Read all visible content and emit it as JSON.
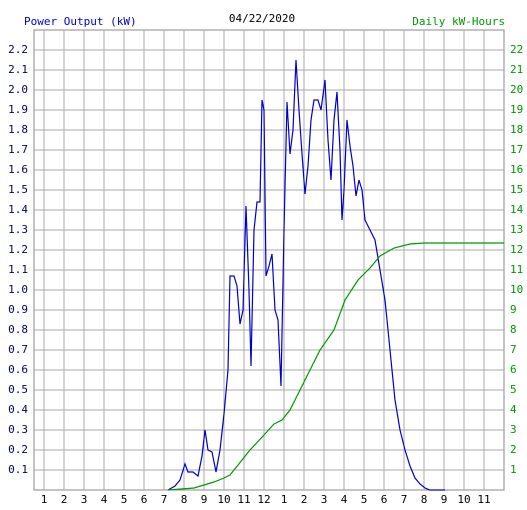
{
  "chart_data": {
    "type": "line",
    "title": "04/22/2020",
    "xlim": [
      0.5,
      24
    ],
    "ylim": [
      0,
      2.3
    ],
    "y2lim": [
      0,
      23
    ],
    "xticks": [
      1,
      2,
      3,
      4,
      5,
      6,
      7,
      8,
      9,
      10,
      11,
      12,
      {
        "value": 13,
        "label": "1"
      },
      {
        "value": 14,
        "label": "2"
      },
      {
        "value": 15,
        "label": "3"
      },
      {
        "value": 16,
        "label": "4"
      },
      {
        "value": 17,
        "label": "5"
      },
      {
        "value": 18,
        "label": "6"
      },
      {
        "value": 19,
        "label": "7"
      },
      {
        "value": 20,
        "label": "8"
      },
      {
        "value": 21,
        "label": "9"
      },
      {
        "value": 22,
        "label": "10"
      },
      {
        "value": 23,
        "label": "11"
      }
    ],
    "yticks": [
      0.1,
      0.2,
      0.3,
      0.4,
      0.5,
      0.6,
      0.7,
      0.8,
      0.9,
      {
        "value": 1,
        "label": "1.0"
      },
      1.1,
      1.2,
      1.3,
      1.4,
      1.5,
      1.6,
      1.7,
      1.8,
      1.9,
      {
        "value": 2,
        "label": "2.0"
      },
      2.1,
      2.2
    ],
    "y2ticks": [
      1,
      2,
      3,
      4,
      5,
      6,
      7,
      8,
      9,
      10,
      11,
      12,
      13,
      14,
      15,
      16,
      17,
      18,
      19,
      20,
      21,
      22
    ],
    "grid": true,
    "series": [
      {
        "name": "Power Output (kW)",
        "color": "#0000cc",
        "x": [
          7.2,
          7.55,
          7.8,
          8.05,
          8.2,
          8.45,
          8.7,
          8.9,
          9.05,
          9.2,
          9.4,
          9.6,
          9.8,
          10.0,
          10.2,
          10.3,
          10.5,
          10.65,
          10.8,
          10.95,
          11.1,
          11.25,
          11.35,
          11.5,
          11.65,
          11.8,
          11.9,
          12.0,
          12.1,
          12.25,
          12.4,
          12.55,
          12.7,
          12.85,
          13.0,
          13.15,
          13.3,
          13.45,
          13.6,
          13.75,
          13.9,
          14.05,
          14.2,
          14.35,
          14.5,
          14.7,
          14.85,
          15.05,
          15.2,
          15.35,
          15.5,
          15.65,
          15.8,
          15.9,
          16.0,
          16.15,
          16.3,
          16.45,
          16.6,
          16.75,
          16.9,
          17.05,
          17.3,
          17.55,
          17.8,
          18.05,
          18.3,
          18.55,
          18.8,
          19.05,
          19.3,
          19.55,
          19.8,
          20.05,
          20.3,
          21.05
        ],
        "values": [
          0,
          0.02,
          0.05,
          0.13,
          0.09,
          0.09,
          0.07,
          0.17,
          0.3,
          0.2,
          0.19,
          0.09,
          0.2,
          0.38,
          0.6,
          1.07,
          1.07,
          1.02,
          0.83,
          0.9,
          1.42,
          1.0,
          0.62,
          1.3,
          1.44,
          1.44,
          1.95,
          1.9,
          1.07,
          1.12,
          1.18,
          0.9,
          0.85,
          0.52,
          1.3,
          1.94,
          1.68,
          1.8,
          2.15,
          1.9,
          1.68,
          1.48,
          1.62,
          1.85,
          1.95,
          1.95,
          1.9,
          2.05,
          1.75,
          1.55,
          1.85,
          1.99,
          1.7,
          1.35,
          1.5,
          1.85,
          1.72,
          1.62,
          1.47,
          1.55,
          1.5,
          1.35,
          1.3,
          1.25,
          1.1,
          0.95,
          0.7,
          0.45,
          0.3,
          0.2,
          0.12,
          0.06,
          0.03,
          0.01,
          0,
          0
        ]
      },
      {
        "name": "Daily kW-Hours",
        "color": "#009900",
        "axis": "y2",
        "x": [
          7.2,
          8.5,
          9.5,
          10.0,
          10.3,
          11.3,
          12.0,
          12.5,
          12.9,
          13.3,
          13.8,
          14.3,
          14.8,
          15.5,
          16.05,
          16.7,
          17.3,
          17.8,
          18.5,
          19.3,
          20.0,
          24.0
        ],
        "values": [
          0,
          0.1,
          0.4,
          0.6,
          0.75,
          2.0,
          2.75,
          3.3,
          3.5,
          4.0,
          5.0,
          6.0,
          7.0,
          8.0,
          9.5,
          10.5,
          11.1,
          11.7,
          12.1,
          12.3,
          12.35,
          12.35
        ]
      }
    ]
  }
}
